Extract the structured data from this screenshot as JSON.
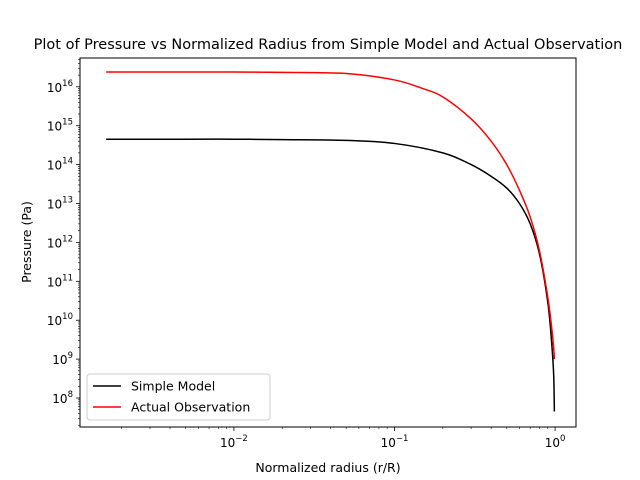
{
  "chart_data": {
    "type": "line",
    "title": "Plot of Pressure vs Normalized Radius from Simple Model and Actual Observation",
    "xlabel": "Normalized radius (r/R)",
    "ylabel": "Pressure (Pa)",
    "xscale": "log",
    "yscale": "log",
    "xlim": [
      0.0011,
      1.35
    ],
    "ylim": [
      18000000.0,
      5.5e+16
    ],
    "xticks": [
      {
        "value": 0.01,
        "base": "10",
        "exp": "−2"
      },
      {
        "value": 0.1,
        "base": "10",
        "exp": "−1"
      },
      {
        "value": 1,
        "base": "10",
        "exp": "0"
      }
    ],
    "yticks": [
      {
        "value": 100000000.0,
        "base": "10",
        "exp": "8"
      },
      {
        "value": 1000000000.0,
        "base": "10",
        "exp": "9"
      },
      {
        "value": 10000000000.0,
        "base": "10",
        "exp": "10"
      },
      {
        "value": 100000000000.0,
        "base": "10",
        "exp": "11"
      },
      {
        "value": 1000000000000.0,
        "base": "10",
        "exp": "12"
      },
      {
        "value": 10000000000000.0,
        "base": "10",
        "exp": "13"
      },
      {
        "value": 100000000000000.0,
        "base": "10",
        "exp": "14"
      },
      {
        "value": 1000000000000000.0,
        "base": "10",
        "exp": "15"
      },
      {
        "value": 1e+16,
        "base": "10",
        "exp": "16"
      }
    ],
    "grid": false,
    "legend_position": "lower-left",
    "series": [
      {
        "name": "Simple Model",
        "color": "#000000",
        "x": [
          0.0016,
          0.003,
          0.005,
          0.01,
          0.02,
          0.05,
          0.1,
          0.2,
          0.3,
          0.4,
          0.5,
          0.6,
          0.7,
          0.8,
          0.9,
          0.95,
          0.98,
          0.99
        ],
        "y": [
          450000000000000.0,
          450000000000000.0,
          450000000000000.0,
          450000000000000.0,
          440000000000000.0,
          420000000000000.0,
          350000000000000.0,
          200000000000000.0,
          100000000000000.0,
          50000000000000.0,
          25000000000000.0,
          10000000000000.0,
          3000000000000.0,
          500000000000.0,
          30000000000.0,
          3000000000.0,
          400000000.0,
          45000000.0
        ]
      },
      {
        "name": "Actual Observation",
        "color": "#ff0000",
        "x": [
          0.0016,
          0.003,
          0.005,
          0.01,
          0.02,
          0.05,
          0.1,
          0.15,
          0.2,
          0.3,
          0.4,
          0.5,
          0.6,
          0.7,
          0.8,
          0.9,
          0.95,
          0.98,
          0.99
        ],
        "y": [
          2.4e+16,
          2.4e+16,
          2.4e+16,
          2.4e+16,
          2.35e+16,
          2.2e+16,
          1.5e+16,
          9000000000000000.0,
          5500000000000000.0,
          1500000000000000.0,
          400000000000000.0,
          100000000000000.0,
          22000000000000.0,
          4500000000000.0,
          600000000000.0,
          40000000000.0,
          7000000000.0,
          2000000000.0,
          1000000000.0
        ]
      }
    ]
  }
}
